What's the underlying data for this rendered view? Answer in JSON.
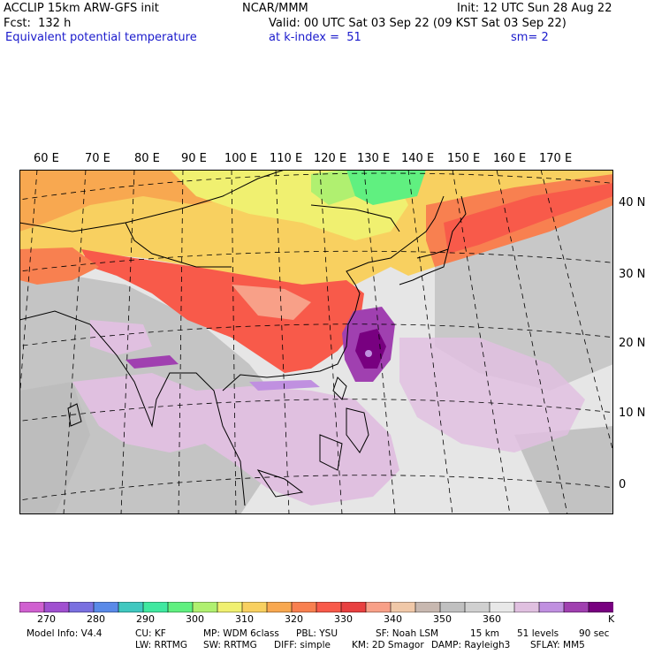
{
  "header": {
    "model": "ACCLIP 15km ARW-GFS init",
    "org": "NCAR/MMM",
    "init": "Init: 12 UTC Sun 28 Aug 22",
    "fcst": "Fcst:  132 h",
    "valid": "Valid: 00 UTC Sat 03 Sep 22 (09 KST Sat 03 Sep 22)",
    "field": "Equivalent potential temperature",
    "level": "at k-index =  51",
    "smooth": "sm= 2"
  },
  "lon_labels": [
    "60 E",
    "70 E",
    "80 E",
    "90 E",
    "100 E",
    "110 E",
    "120 E",
    "130 E",
    "140 E",
    "150 E",
    "160 E",
    "170 E"
  ],
  "lat_labels": [
    "40 N",
    "30 N",
    "20 N",
    "10 N",
    "0"
  ],
  "colorbar": {
    "colors": [
      "#d060d0",
      "#a050d0",
      "#7a70e0",
      "#5a8ae8",
      "#40c8c0",
      "#40e8a0",
      "#60f080",
      "#b0f070",
      "#f0f070",
      "#f8d060",
      "#f8a850",
      "#f88050",
      "#f85a4a",
      "#e84040",
      "#f8a088",
      "#f0c8a8",
      "#c8b8b0",
      "#c0c0c0",
      "#d0d0d0",
      "#e8e8e8",
      "#e0c0e0",
      "#c090e0",
      "#a040b0",
      "#780080"
    ],
    "ticks": [
      "270",
      "280",
      "290",
      "300",
      "310",
      "320",
      "330",
      "340",
      "350",
      "360"
    ],
    "unit": "K"
  },
  "model_info": {
    "line1": [
      "Model Info: V4.4",
      "CU: KF",
      "MP: WDM 6class",
      "PBL: YSU",
      "SF: Noah LSM",
      "15 km",
      "51 levels",
      "90 sec"
    ],
    "line2": [
      "LW: RRTMG",
      "SW: RRTMG",
      "DIFF: simple",
      "KM: 2D Smagor",
      "DAMP: Rayleigh3",
      "SFLAY: MM5"
    ]
  }
}
